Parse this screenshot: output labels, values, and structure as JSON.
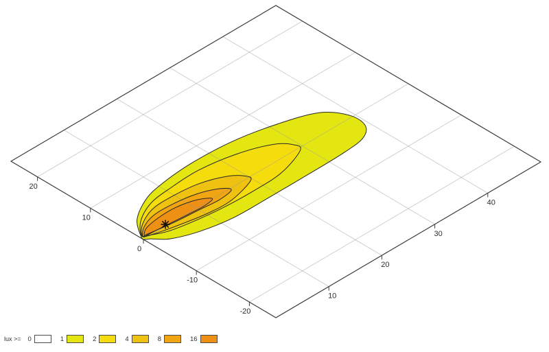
{
  "page": {
    "background": "#ffffff"
  },
  "legend": {
    "title": "lux >=",
    "items": [
      {
        "label": "0",
        "color": "#ffffff"
      },
      {
        "label": "1",
        "color": "#e4e612"
      },
      {
        "label": "2",
        "color": "#f5dc0d"
      },
      {
        "label": "4",
        "color": "#efc211"
      },
      {
        "label": "8",
        "color": "#f2a513"
      },
      {
        "label": "16",
        "color": "#ee9013"
      }
    ]
  },
  "colors": {
    "grid": "#999999",
    "axis": "#3b3b3b",
    "contour_stroke": "#262626",
    "label": "#2b2b2b",
    "marker": "#111111"
  },
  "chart_data": {
    "type": "contour",
    "subtype": "isolux-floodlight-3d-plane",
    "title": "",
    "units": "lux",
    "levels": [
      0,
      1,
      2,
      4,
      8,
      16
    ],
    "grid": true,
    "legend_position": "bottom-left",
    "axes": {
      "left": {
        "ticks": [
          20,
          10,
          0,
          -10,
          -20
        ],
        "range": [
          -25,
          25
        ]
      },
      "right": {
        "ticks": [
          10,
          20,
          30,
          40
        ],
        "range": [
          0,
          50
        ]
      }
    },
    "projection": {
      "origin": [
        209,
        349
      ],
      "e1": [
        7.72,
        -4.54
      ],
      "e2": [
        -7.72,
        -4.56
      ],
      "u_range": [
        0,
        50
      ],
      "v_range": [
        -25,
        25
      ]
    },
    "source_marker": {
      "u": 4.5,
      "v": 0.35
    },
    "contours": [
      {
        "level": 1,
        "color": "#e4e612",
        "points_uv": [
          [
            0.2,
            0.6
          ],
          [
            2.6,
            3.8
          ],
          [
            6.7,
            6.2
          ],
          [
            10.8,
            7.2
          ],
          [
            16.9,
            7.7
          ],
          [
            24.3,
            7.3
          ],
          [
            31.4,
            5.8
          ],
          [
            37.0,
            3.7
          ],
          [
            39.4,
            0.4
          ],
          [
            39.2,
            -2.7
          ],
          [
            36.8,
            -4.5
          ],
          [
            32.3,
            -5.0
          ],
          [
            25.8,
            -5.1
          ],
          [
            18.7,
            -5.1
          ],
          [
            12.0,
            -5.0
          ],
          [
            6.6,
            -4.0
          ],
          [
            2.6,
            -2.4
          ],
          [
            0.8,
            -0.6
          ],
          [
            0.1,
            -0.1
          ]
        ]
      },
      {
        "level": 2,
        "color": "#f5dc0d",
        "points_uv": [
          [
            0.4,
            0.7
          ],
          [
            2.7,
            3.2
          ],
          [
            6.5,
            5.1
          ],
          [
            10.8,
            5.7
          ],
          [
            16.3,
            5.9
          ],
          [
            22.5,
            4.9
          ],
          [
            27.5,
            3.0
          ],
          [
            29.4,
            1.0
          ],
          [
            29.1,
            -0.5
          ],
          [
            23.8,
            -2.3
          ],
          [
            18.2,
            -2.6
          ],
          [
            12.4,
            -2.4
          ],
          [
            7.4,
            -1.8
          ],
          [
            3.6,
            -1.0
          ],
          [
            1.5,
            0.0
          ]
        ]
      },
      {
        "level": 4,
        "color": "#efc211",
        "points_uv": [
          [
            0.5,
            0.7
          ],
          [
            2.3,
            2.5
          ],
          [
            5.7,
            4.0
          ],
          [
            9.5,
            4.2
          ],
          [
            14.2,
            3.7
          ],
          [
            17.9,
            2.3
          ],
          [
            19.7,
            0.7
          ],
          [
            19.6,
            -0.65
          ],
          [
            14.7,
            -2.0
          ],
          [
            10.5,
            -1.9
          ],
          [
            6.5,
            -1.2
          ],
          [
            3.3,
            -0.5
          ],
          [
            1.3,
            0.1
          ]
        ]
      },
      {
        "level": 8,
        "color": "#f2a513",
        "points_uv": [
          [
            0.4,
            0.5
          ],
          [
            2.0,
            1.9
          ],
          [
            4.8,
            2.9
          ],
          [
            8.5,
            2.9
          ],
          [
            12.2,
            2.3
          ],
          [
            15.1,
            1.1
          ],
          [
            16.3,
            -0.3
          ],
          [
            13.6,
            -0.8
          ],
          [
            10.0,
            -0.5
          ],
          [
            6.1,
            -0.2
          ],
          [
            3.15,
            0.2
          ],
          [
            1.1,
            0.5
          ]
        ]
      },
      {
        "level": 16,
        "color": "#ee9013",
        "points_uv": [
          [
            0.6,
            0.4
          ],
          [
            2.0,
            1.5
          ],
          [
            4.8,
            2.05
          ],
          [
            8.0,
            2.1
          ],
          [
            10.75,
            1.55
          ],
          [
            12.5,
            0.7
          ],
          [
            13.0,
            -0.05
          ],
          [
            11.15,
            -0.35
          ],
          [
            8.3,
            -0.2
          ],
          [
            5.3,
            0.05
          ],
          [
            2.7,
            0.25
          ],
          [
            1.2,
            0.35
          ]
        ]
      }
    ]
  }
}
